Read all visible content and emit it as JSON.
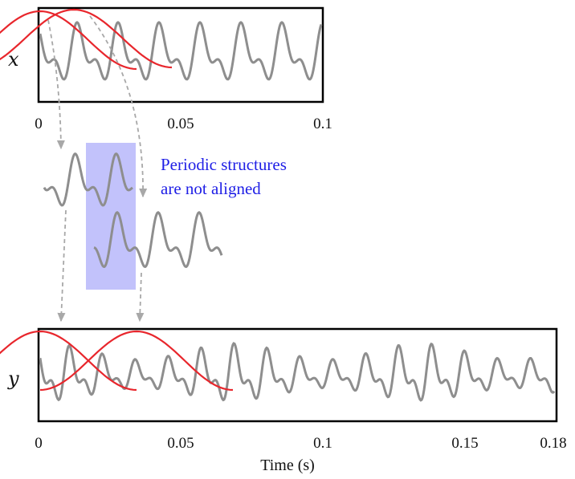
{
  "top_panel": {
    "variable_label": "x",
    "ticks": [
      "0",
      "0.05",
      "0.1"
    ]
  },
  "middle": {
    "annotation_line1": "Periodic structures",
    "annotation_line2": "are not aligned"
  },
  "bottom_panel": {
    "variable_label": "y",
    "ticks": [
      "0",
      "0.05",
      "0.1",
      "0.15",
      "0.18"
    ],
    "xlabel": "Time (s)"
  },
  "colors": {
    "signal": "#8e8e8e",
    "window": "#e8262c",
    "highlight": "#c2c2fb",
    "annotation": "#1f1fe6",
    "arrow": "#a8a8a8"
  }
}
